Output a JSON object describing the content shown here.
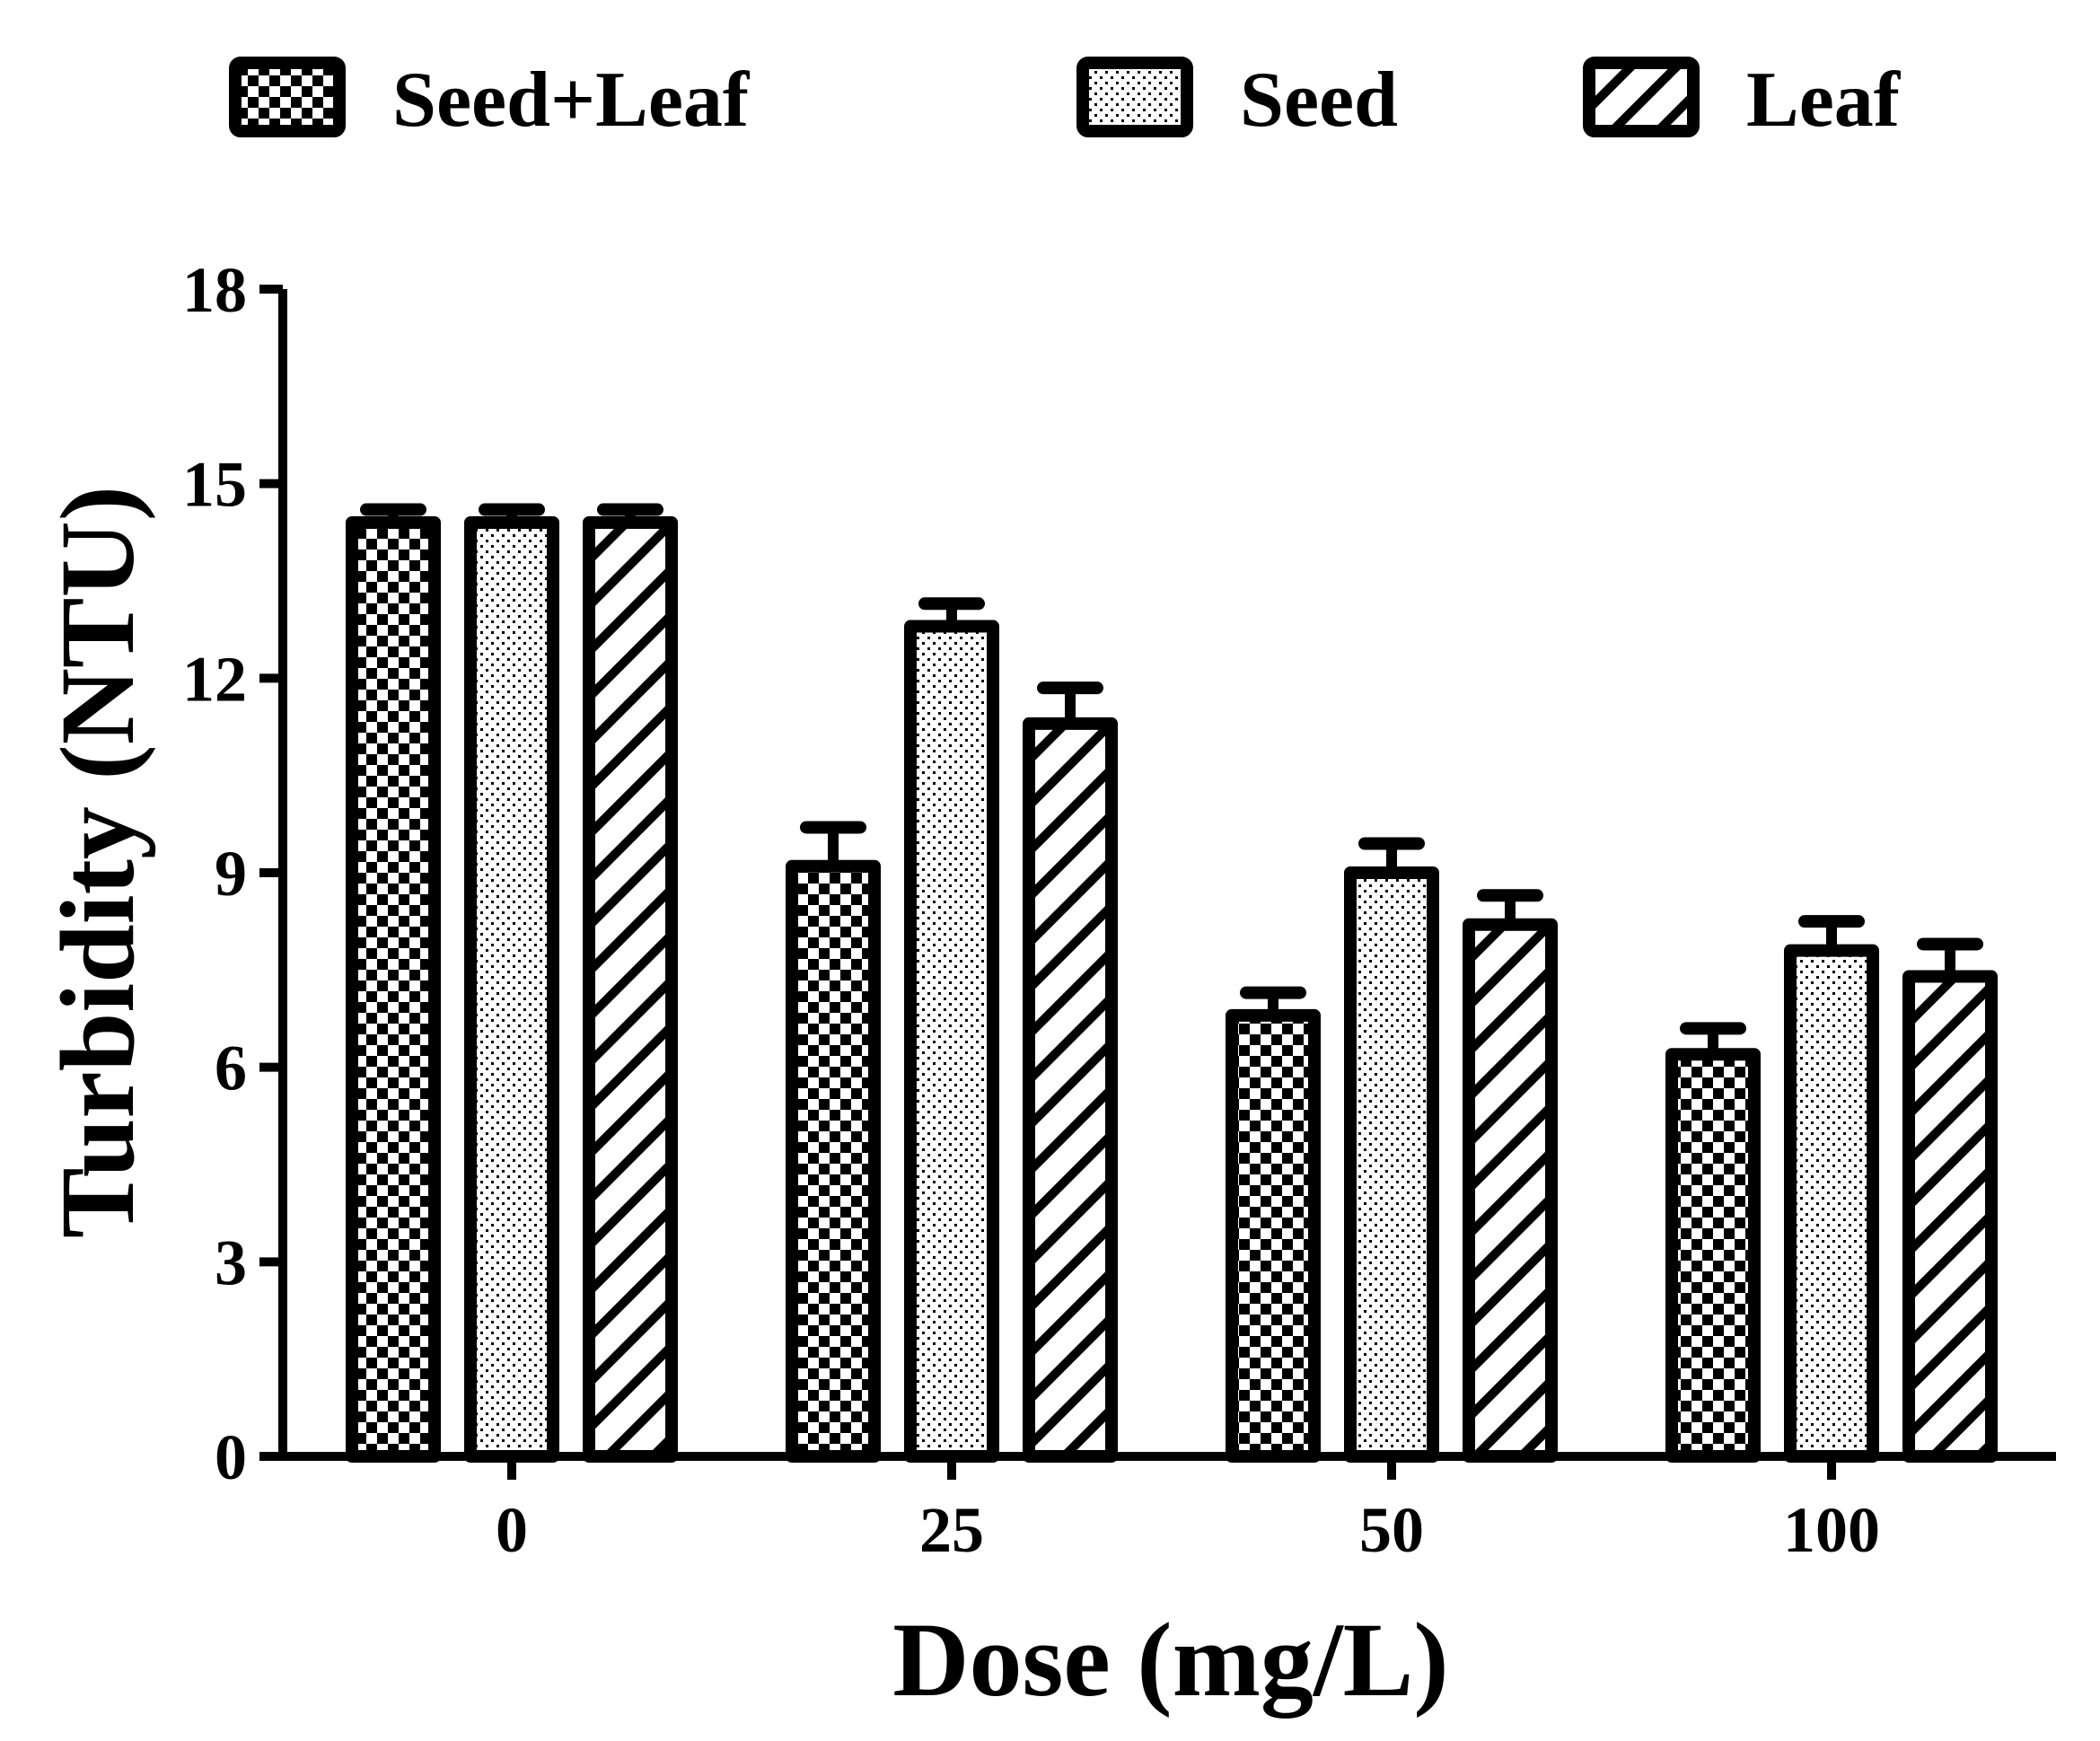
{
  "chart_data": {
    "type": "bar",
    "title": "",
    "xlabel": "Dose (mg/L)",
    "ylabel": "Turbidity (NTU)",
    "categories": [
      "0",
      "25",
      "50",
      "100"
    ],
    "ylim": [
      0,
      18
    ],
    "yticks": [
      "0",
      "3",
      "6",
      "9",
      "12",
      "15",
      "18"
    ],
    "grid": false,
    "legend_position": "top",
    "series": [
      {
        "name": "Seed+Leaf",
        "pattern": "checker",
        "values": [
          14.4,
          9.1,
          6.8,
          6.2
        ],
        "errors": [
          0.2,
          0.6,
          0.35,
          0.4
        ]
      },
      {
        "name": "Seed",
        "pattern": "dots",
        "values": [
          14.4,
          12.8,
          9.0,
          7.8
        ],
        "errors": [
          0.2,
          0.35,
          0.45,
          0.45
        ]
      },
      {
        "name": "Leaf",
        "pattern": "diagonal",
        "values": [
          14.4,
          11.3,
          8.2,
          7.4
        ],
        "errors": [
          0.2,
          0.55,
          0.45,
          0.5
        ]
      }
    ],
    "colors": {
      "ink": "#000000",
      "background": "#ffffff"
    }
  }
}
